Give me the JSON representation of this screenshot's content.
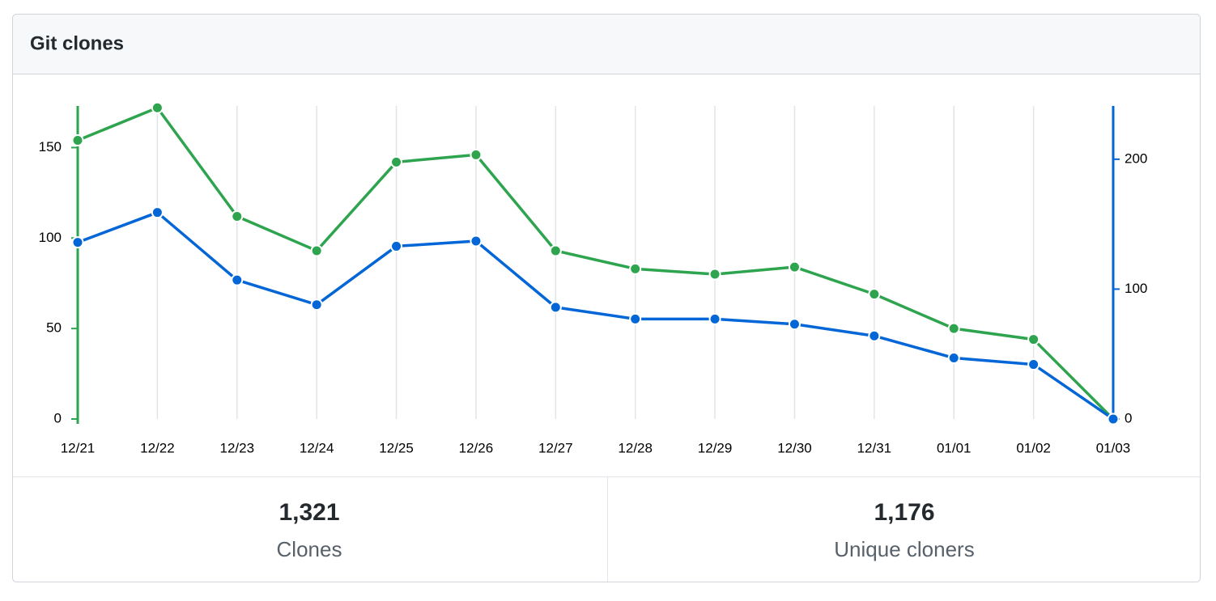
{
  "chart_data": {
    "type": "line",
    "title": "Git clones",
    "categories": [
      "12/21",
      "12/22",
      "12/23",
      "12/24",
      "12/25",
      "12/26",
      "12/27",
      "12/28",
      "12/29",
      "12/30",
      "12/31",
      "01/01",
      "01/02",
      "01/03"
    ],
    "series": [
      {
        "color": "#2ea44f",
        "values": [
          154,
          172,
          112,
          93,
          142,
          146,
          93,
          83,
          80,
          84,
          69,
          50,
          44,
          0
        ]
      },
      {
        "color": "#0366d6",
        "axis": "y2",
        "values": [
          136,
          159,
          107,
          88,
          133,
          137,
          86,
          77,
          77,
          73,
          64,
          47,
          42,
          0
        ]
      }
    ],
    "ylim": [
      0,
      173
    ],
    "yticks": [
      0,
      50,
      100,
      150
    ],
    "y2lim": [
      0,
      241
    ],
    "y2ticks": [
      0,
      100,
      200
    ],
    "grid": true
  },
  "summary": [
    {
      "value": "1,321",
      "label": "Clones"
    },
    {
      "value": "1,176",
      "label": "Unique cloners"
    }
  ]
}
